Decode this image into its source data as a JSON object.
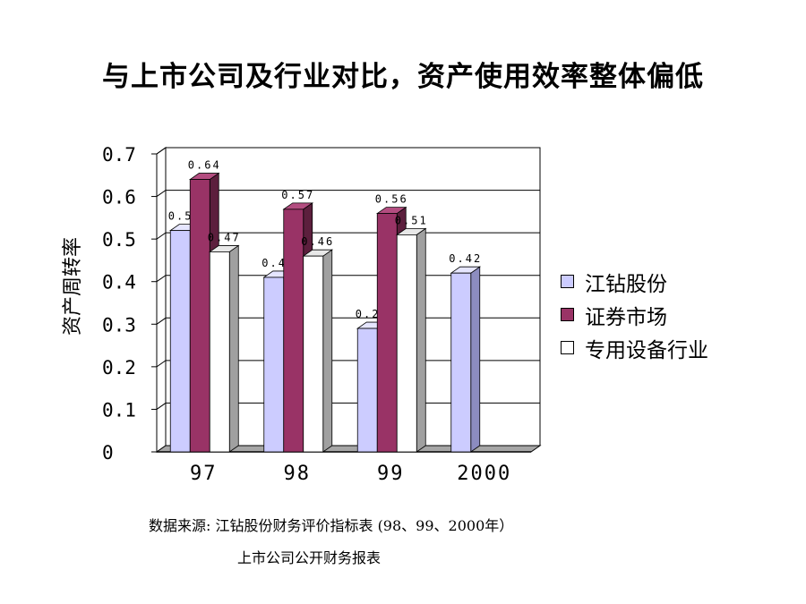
{
  "slide": {
    "title": "与上市公司及行业对比，资产使用效率整体偏低",
    "source_line1": "数据来源:  江钻股份财务评价指标表 (98、99、2000年）",
    "source_line2": "上市公司公开财务报表"
  },
  "chart_data": {
    "type": "bar",
    "ylabel": "资产周转率",
    "ylim": [
      0,
      0.7
    ],
    "yticks": [
      "0",
      "0.1",
      "0.2",
      "0.3",
      "0.4",
      "0.5",
      "0.6",
      "0.7"
    ],
    "categories": [
      "97",
      "98",
      "99",
      "2000"
    ],
    "grid": true,
    "legend_position": "right",
    "series": [
      {
        "name": "江钻股份",
        "color": "#ccccff",
        "side_color": "#8c8cc0",
        "top_color": "#e6e6ff",
        "values": [
          0.52,
          0.41,
          0.29,
          0.42
        ],
        "labels": [
          "0.52",
          "0.41",
          "0.29",
          "0.42"
        ]
      },
      {
        "name": "证券市场",
        "color": "#993366",
        "side_color": "#5c1f3d",
        "top_color": "#b34d80",
        "values": [
          0.64,
          0.57,
          0.56,
          null
        ],
        "labels": [
          "0.64",
          "0.57",
          "0.56",
          ""
        ]
      },
      {
        "name": "专用设备行业",
        "color": "#ffffff",
        "side_color": "#a0a0a0",
        "top_color": "#e8e8e8",
        "values": [
          0.47,
          0.46,
          0.51,
          null
        ],
        "labels": [
          "0.47",
          "0.46",
          "0.51",
          ""
        ]
      }
    ]
  }
}
